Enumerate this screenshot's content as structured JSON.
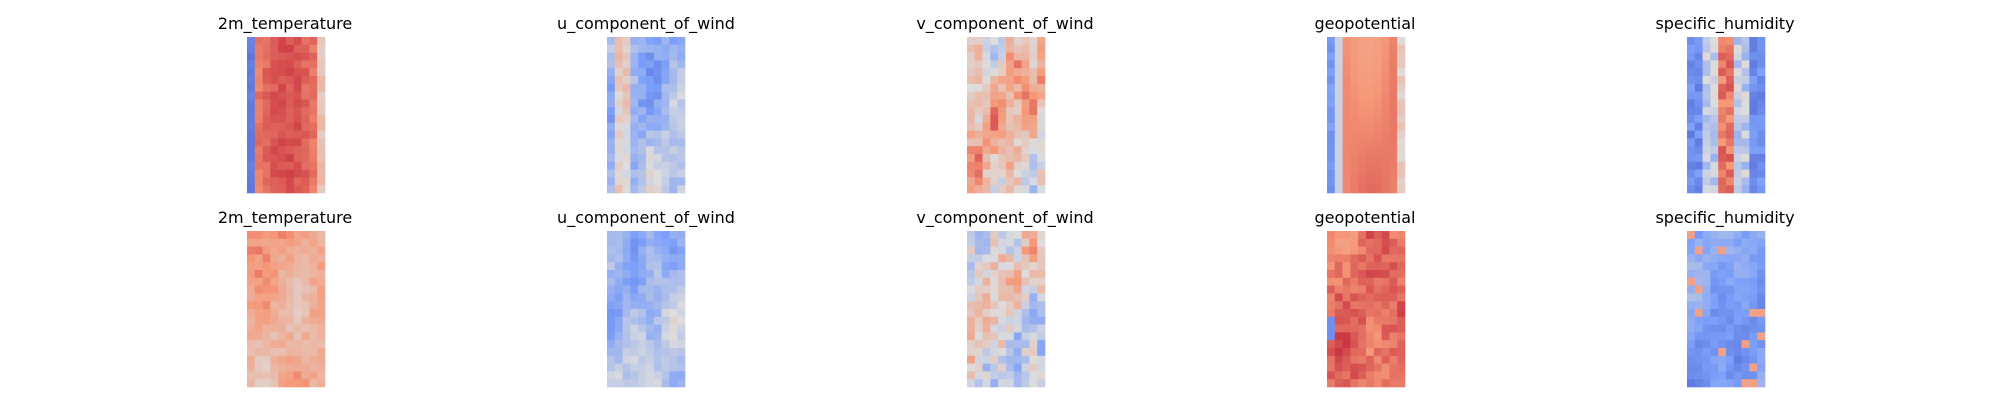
{
  "chart_data": [
    {
      "type": "heatmap",
      "title": "2m_temperature",
      "colormap": "coolwarm",
      "row": "top",
      "pattern": "temperature_top"
    },
    {
      "type": "heatmap",
      "title": "u_component_of_wind",
      "colormap": "coolwarm",
      "row": "top",
      "pattern": "uwind_top"
    },
    {
      "type": "heatmap",
      "title": "v_component_of_wind",
      "colormap": "coolwarm",
      "row": "top",
      "pattern": "vwind_top"
    },
    {
      "type": "heatmap",
      "title": "geopotential",
      "colormap": "coolwarm",
      "row": "top",
      "pattern": "geopotential_top"
    },
    {
      "type": "heatmap",
      "title": "specific_humidity",
      "colormap": "coolwarm",
      "row": "top",
      "pattern": "humidity_top"
    },
    {
      "type": "heatmap",
      "title": "2m_temperature",
      "colormap": "coolwarm",
      "row": "bottom",
      "pattern": "temperature_bottom"
    },
    {
      "type": "heatmap",
      "title": "u_component_of_wind",
      "colormap": "coolwarm",
      "row": "bottom",
      "pattern": "uwind_bottom"
    },
    {
      "type": "heatmap",
      "title": "v_component_of_wind",
      "colormap": "coolwarm",
      "row": "bottom",
      "pattern": "vwind_bottom"
    },
    {
      "type": "heatmap",
      "title": "geopotential",
      "colormap": "coolwarm",
      "row": "bottom",
      "pattern": "geopotential_bottom"
    },
    {
      "type": "heatmap",
      "title": "specific_humidity",
      "colormap": "coolwarm",
      "row": "bottom",
      "pattern": "humidity_bottom"
    }
  ]
}
